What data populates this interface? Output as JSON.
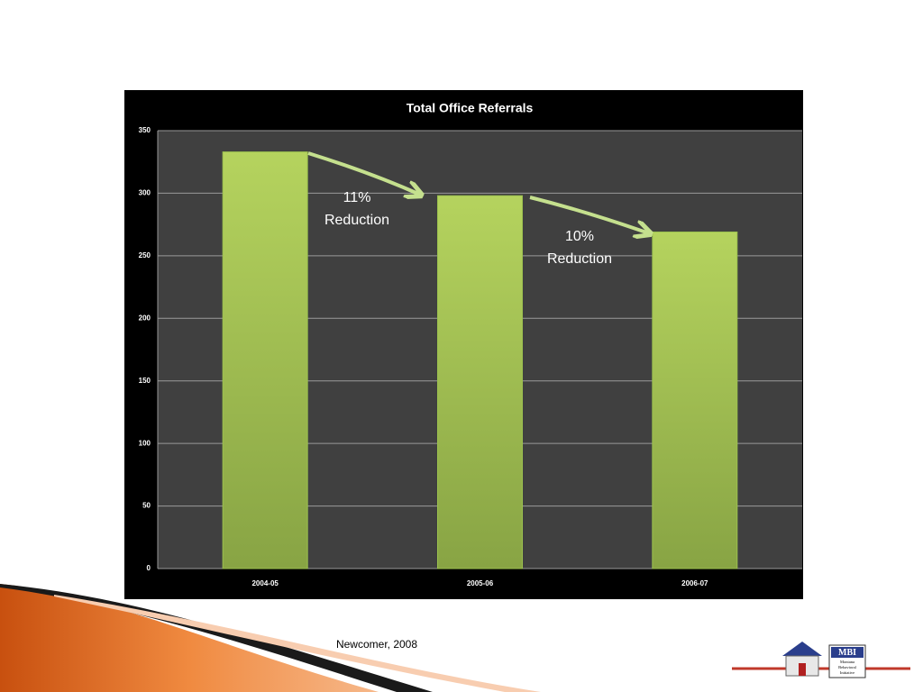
{
  "chart_data": {
    "type": "bar",
    "title": "Total Office Referrals",
    "categories": [
      "2004-05",
      "2005-06",
      "2006-07"
    ],
    "values": [
      333,
      298,
      269
    ],
    "color": "#9bc14e",
    "ylim": [
      0,
      350
    ],
    "yticks": [
      0,
      50,
      100,
      150,
      200,
      250,
      300,
      350
    ],
    "grid": true,
    "annotations": [
      [
        "11%",
        "Reduction"
      ],
      [
        "10%",
        "Reduction"
      ]
    ]
  },
  "footer": {
    "source": "Newcomer, 2008",
    "logo": [
      "MBI",
      "Montana",
      "Behavioral",
      "Initiative"
    ]
  }
}
